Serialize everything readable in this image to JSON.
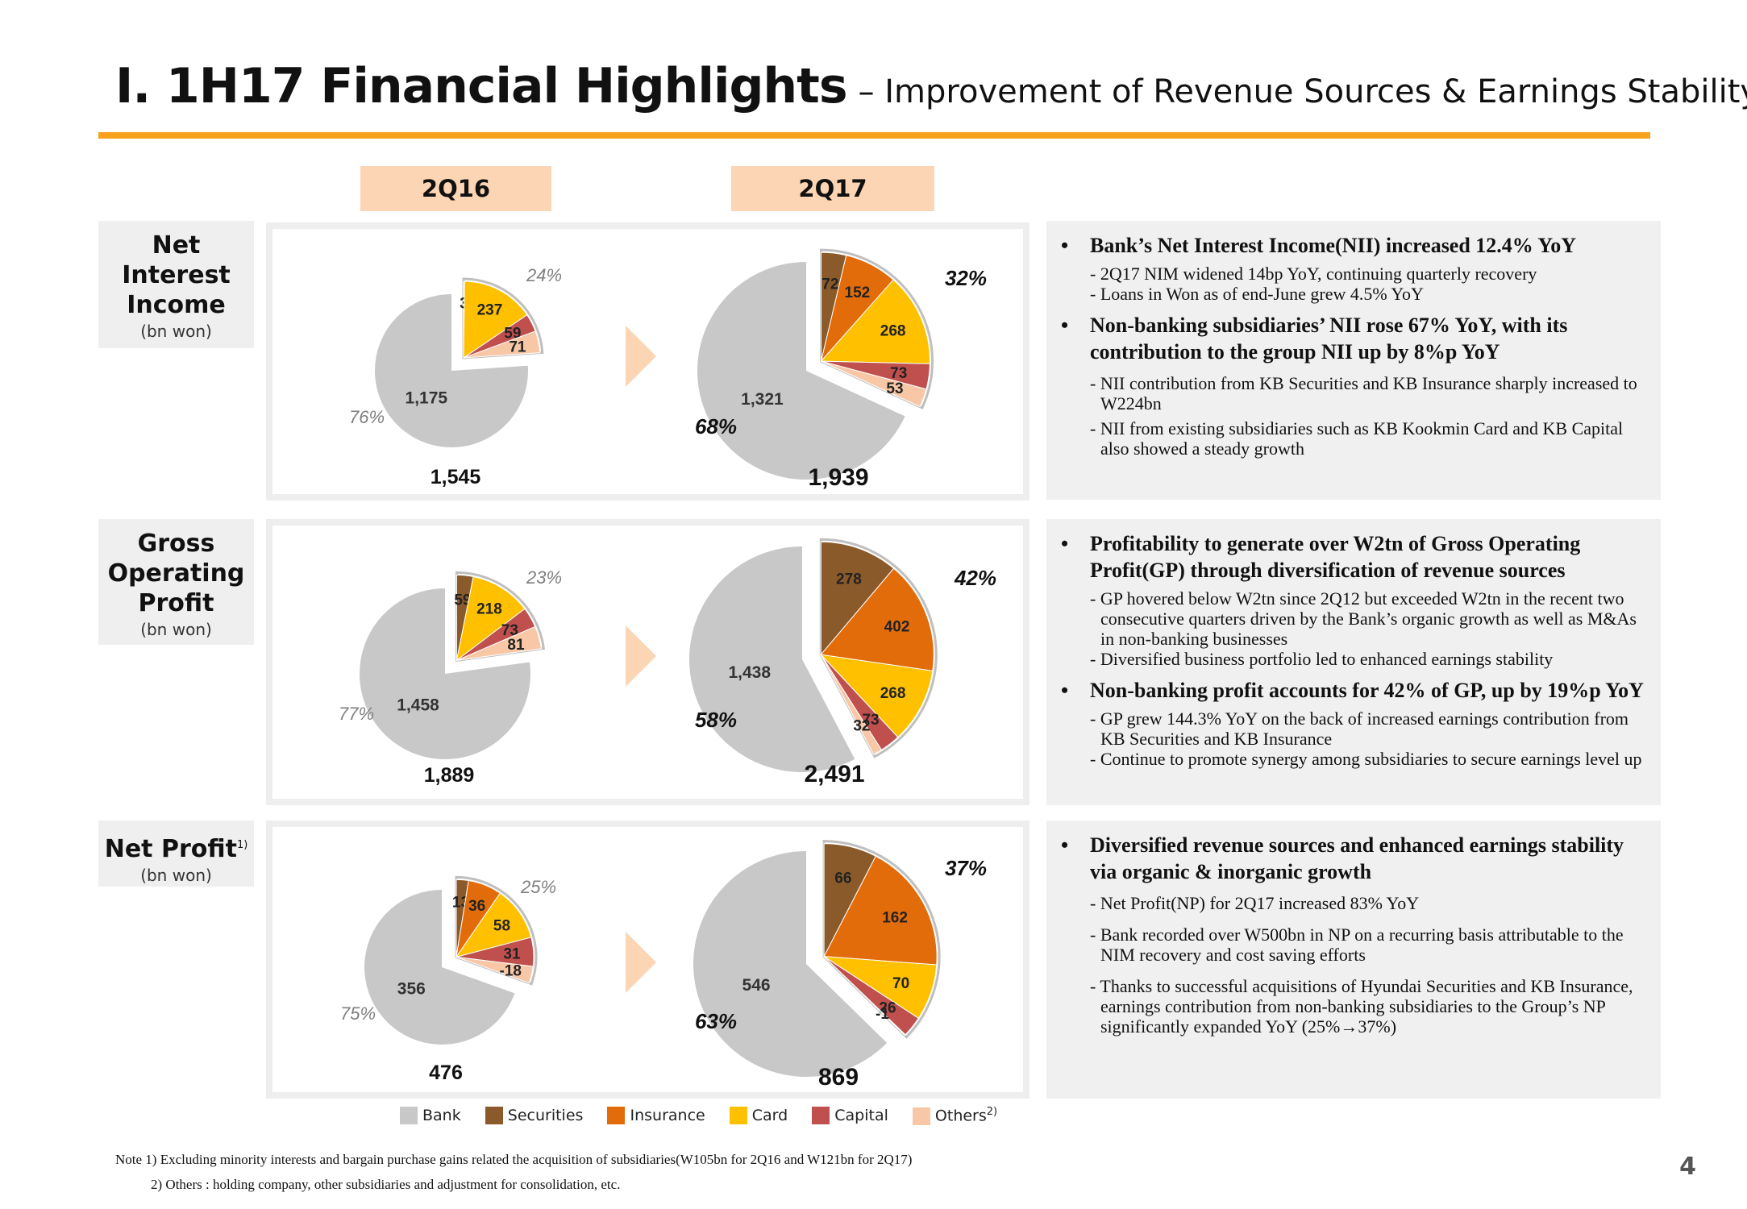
{
  "title": {
    "main": "I. 1H17 Financial Highlights",
    "sub": "– Improvement of Revenue Sources & Earnings Stability"
  },
  "colors": {
    "accent_rule": "#f7a21b",
    "header_fill": "#fcd5b4"
  },
  "periods": [
    "2Q16",
    "2Q17"
  ],
  "rows": [
    {
      "label": [
        "Net",
        "Interest",
        "Income"
      ],
      "unit": "(bn won)",
      "sup": ""
    },
    {
      "label": [
        "Gross",
        "Operating",
        "Profit"
      ],
      "unit": "(bn won)",
      "sup": ""
    },
    {
      "label": [
        "Net Profit"
      ],
      "unit": "(bn won)",
      "sup": "1)"
    }
  ],
  "chart_data": [
    {
      "type": "pie",
      "title": "Net Interest Income 2Q16",
      "total": "1,545",
      "bank_share": "76%",
      "nonbank_share": "24%",
      "categories": [
        "Bank",
        "Securities",
        "Insurance",
        "Card",
        "Capital",
        "Others"
      ],
      "values": [
        1175,
        3,
        0,
        237,
        59,
        71
      ],
      "labels": [
        "1,175",
        "3",
        "",
        "237",
        "59",
        "71"
      ]
    },
    {
      "type": "pie",
      "title": "Net Interest Income 2Q17",
      "total": "1,939",
      "bank_share": "68%",
      "nonbank_share": "32%",
      "categories": [
        "Bank",
        "Securities",
        "Insurance",
        "Card",
        "Capital",
        "Others"
      ],
      "values": [
        1321,
        72,
        152,
        268,
        73,
        53
      ],
      "labels": [
        "1,321",
        "72",
        "152",
        "268",
        "73",
        "53"
      ]
    },
    {
      "type": "pie",
      "title": "Gross Operating Profit 2Q16",
      "total": "1,889",
      "bank_share": "77%",
      "nonbank_share": "23%",
      "categories": [
        "Bank",
        "Securities",
        "Insurance",
        "Card",
        "Capital",
        "Others"
      ],
      "values": [
        1458,
        59,
        0,
        218,
        73,
        81
      ],
      "labels": [
        "1,458",
        "59",
        "",
        "218",
        "73",
        "81"
      ]
    },
    {
      "type": "pie",
      "title": "Gross Operating Profit 2Q17",
      "total": "2,491",
      "bank_share": "58%",
      "nonbank_share": "42%",
      "categories": [
        "Bank",
        "Securities",
        "Insurance",
        "Card",
        "Capital",
        "Others"
      ],
      "values": [
        1438,
        278,
        402,
        268,
        73,
        32
      ],
      "labels": [
        "1,438",
        "278",
        "402",
        "268",
        "73",
        "32"
      ]
    },
    {
      "type": "pie",
      "title": "Net Profit 2Q16",
      "total": "476",
      "bank_share": "75%",
      "nonbank_share": "25%",
      "categories": [
        "Bank",
        "Securities",
        "Insurance",
        "Card",
        "Capital",
        "Others"
      ],
      "values": [
        356,
        13,
        36,
        58,
        31,
        -18
      ],
      "labels": [
        "356",
        "13",
        "36",
        "58",
        "31",
        "-18"
      ]
    },
    {
      "type": "pie",
      "title": "Net Profit 2Q17",
      "total": "869",
      "bank_share": "63%",
      "nonbank_share": "37%",
      "categories": [
        "Bank",
        "Securities",
        "Insurance",
        "Card",
        "Capital",
        "Others"
      ],
      "values": [
        546,
        66,
        162,
        70,
        26,
        -1
      ],
      "labels": [
        "546",
        "66",
        "162",
        "70",
        "26",
        "-1"
      ]
    }
  ],
  "series_colors": {
    "Bank": "#c8c8c8",
    "Securities": "#8b5a2b",
    "Insurance": "#e36c0a",
    "Card": "#ffc000",
    "Capital": "#c0504d",
    "Others": "#f8c7a6"
  },
  "legend": [
    {
      "name": "Bank",
      "color": "#c8c8c8"
    },
    {
      "name": "Securities",
      "color": "#8b5a2b"
    },
    {
      "name": "Insurance",
      "color": "#e36c0a"
    },
    {
      "name": "Card",
      "color": "#ffc000"
    },
    {
      "name": "Capital",
      "color": "#c0504d"
    },
    {
      "name": "Others",
      "color": "#f8c7a6",
      "sup": "2)"
    }
  ],
  "bullets": [
    [
      {
        "head": "Bank’s Net Interest Income(NII) increased 12.4% YoY",
        "subs": [
          "- 2Q17 NIM widened 14bp YoY, continuing quarterly recovery",
          "- Loans in Won as of end-June grew 4.5% YoY"
        ]
      },
      {
        "head": "Non-banking subsidiaries’ NII rose 67% YoY, with its contribution to the group NII up by 8%p YoY",
        "subs": [
          "- NII contribution from KB Securities and KB Insurance sharply increased to W224bn",
          "- NII from existing subsidiaries such as KB Kookmin Card and KB Capital also showed a steady growth"
        ]
      }
    ],
    [
      {
        "head": "Profitability to generate over W2tn of Gross Operating Profit(GP) through diversification of revenue sources",
        "subs": [
          "- GP hovered below W2tn since 2Q12 but exceeded W2tn in the recent two consecutive quarters driven by the Bank’s organic growth as well as M&As in non-banking businesses",
          "- Diversified business portfolio led to  enhanced earnings stability"
        ]
      },
      {
        "head": "Non-banking profit accounts for 42% of GP, up by 19%p YoY",
        "subs": [
          "- GP grew 144.3% YoY on the back of increased earnings contribution from KB Securities and KB Insurance",
          "- Continue to promote synergy among subsidiaries to secure earnings level up"
        ]
      }
    ],
    [
      {
        "head": "Diversified revenue sources and enhanced earnings stability via organic & inorganic growth",
        "subs": [
          "- Net Profit(NP) for 2Q17 increased 83% YoY",
          "- Bank recorded over W500bn in NP on a recurring basis attributable to the NIM recovery and cost saving efforts",
          "- Thanks to successful acquisitions of Hyundai Securities and KB Insurance, earnings contribution from non-banking subsidiaries to the Group’s NP significantly expanded YoY (25%→37%)"
        ]
      }
    ]
  ],
  "footnotes": [
    "Note 1) Excluding minority interests and  bargain purchase gains related the acquisition of subsidiaries(W105bn for 2Q16 and W121bn for 2Q17)",
    "2) Others : holding company, other subsidiaries and adjustment for consolidation, etc."
  ],
  "page_number": "4"
}
